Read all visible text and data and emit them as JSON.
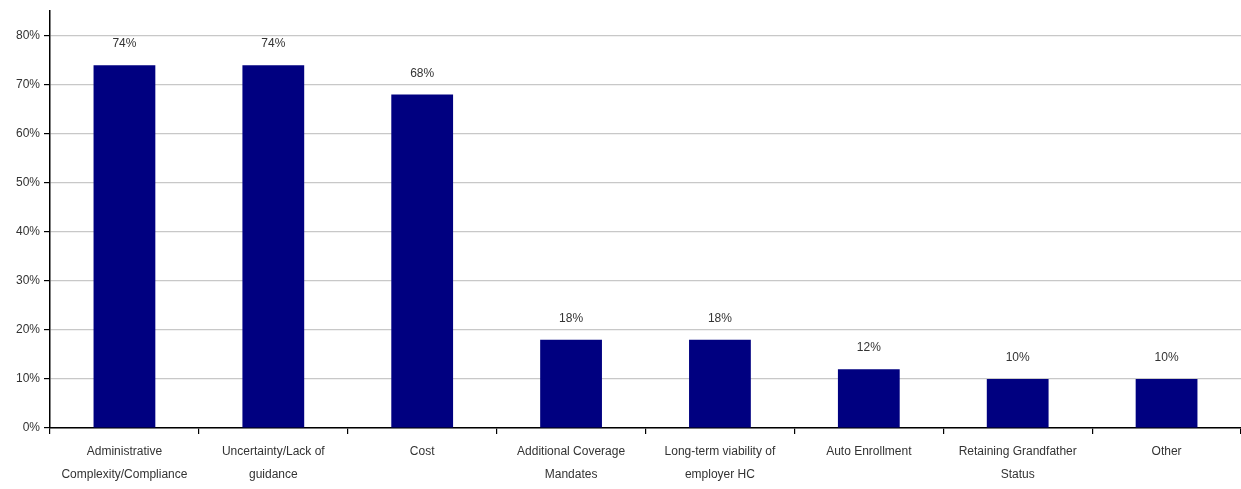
{
  "chart_data": {
    "type": "bar",
    "categories": [
      "Administrative Complexity/Compliance",
      "Uncertainty/Lack of guidance",
      "Cost",
      "Additional Coverage Mandates",
      "Long-term viability of employer HC",
      "Auto Enrollment",
      "Retaining Grandfather Status",
      "Other"
    ],
    "values": [
      74,
      74,
      68,
      18,
      18,
      12,
      10,
      10
    ],
    "value_labels": [
      "74%",
      "74%",
      "68%",
      "18%",
      "18%",
      "12%",
      "10%",
      "10%"
    ],
    "color": "#000080",
    "ylim": [
      0,
      85
    ],
    "yticks": [
      {
        "value": 0,
        "label": "0%"
      },
      {
        "value": 10,
        "label": "10%"
      },
      {
        "value": 20,
        "label": "20%"
      },
      {
        "value": 30,
        "label": "30%"
      },
      {
        "value": 40,
        "label": "40%"
      },
      {
        "value": 50,
        "label": "50%"
      },
      {
        "value": 60,
        "label": "60%"
      },
      {
        "value": 70,
        "label": "70%"
      },
      {
        "value": 80,
        "label": "80%"
      }
    ],
    "grid": "y"
  }
}
